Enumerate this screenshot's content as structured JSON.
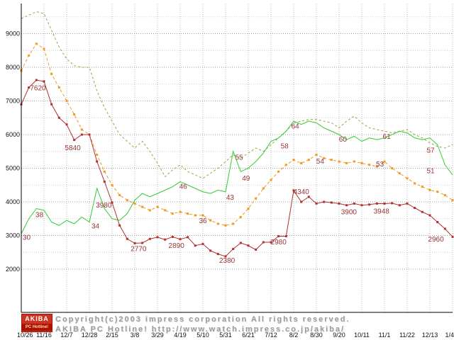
{
  "chart_data": {
    "type": "line",
    "title": "",
    "xlabel": "",
    "ylabel": "",
    "ylim": [
      700,
      9900
    ],
    "grid": {
      "major_color": "#9f9f9f",
      "minor_color": "#d0d0d0",
      "vert_color": "#b5b5b5"
    },
    "label_color": "#993333",
    "y_tick_labels": [
      2000,
      3000,
      4000,
      5000,
      6000,
      7000,
      8000,
      9000
    ],
    "x_tick_labels": [
      "10/26",
      "11/16",
      "12/7",
      "12/28",
      "2/15",
      "3/8",
      "3/29",
      "4/19",
      "5/10",
      "5/31",
      "6/21",
      "7/12",
      "8/2",
      "8/30",
      "9/20",
      "10/11",
      "11/1",
      "11/22",
      "12/13",
      "1/4"
    ],
    "points_per_tick": 3,
    "weeks_span": 57,
    "series": [
      {
        "name": "olive-dashed",
        "color": "#a0a040",
        "dash": "3 3",
        "marker": "none",
        "values": [
          9450,
          9550,
          9650,
          9600,
          9100,
          8600,
          8250,
          8050,
          8000,
          8000,
          7300,
          6800,
          6400,
          6000,
          5800,
          5600,
          5800,
          5500,
          5150,
          4750,
          4950,
          5100,
          4900,
          4800,
          4700,
          4850,
          5000,
          5200,
          5400,
          5300,
          5450,
          5600,
          5500,
          5700,
          5900,
          6100,
          6350,
          6400,
          6450,
          6450,
          6400,
          6350,
          6200,
          6400,
          6550,
          6350,
          6200,
          6150,
          6100,
          6050,
          6100,
          6150,
          6000,
          5900,
          5750,
          5650,
          5600,
          5700
        ]
      },
      {
        "name": "green-solid",
        "color": "#33cc33",
        "dash": "",
        "marker": "none",
        "values": [
          3050,
          3500,
          3800,
          3750,
          3400,
          3300,
          3450,
          3350,
          3550,
          3400,
          4400,
          3800,
          3500,
          3450,
          3650,
          4050,
          4250,
          4150,
          4250,
          4350,
          4450,
          4600,
          4500,
          4400,
          4300,
          4250,
          4350,
          4300,
          5500,
          4900,
          5000,
          5200,
          5450,
          5800,
          5900,
          6100,
          6400,
          6300,
          6400,
          6350,
          6200,
          6100,
          6000,
          5850,
          5950,
          5800,
          5900,
          5850,
          5900,
          6000,
          6100,
          6050,
          5900,
          5850,
          5900,
          5700,
          5100,
          4800
        ]
      },
      {
        "name": "orange-dashed-marker",
        "color": "#ee9922",
        "dash": "4 3",
        "marker": "square",
        "values": [
          7900,
          8350,
          8700,
          8550,
          7800,
          7400,
          7000,
          6600,
          6150,
          6000,
          5400,
          4900,
          4500,
          4200,
          4050,
          3950,
          3850,
          3750,
          3850,
          3750,
          3650,
          3700,
          3650,
          3600,
          3600,
          3450,
          3350,
          3300,
          3350,
          3550,
          3800,
          4100,
          4400,
          4650,
          4900,
          5100,
          5250,
          5150,
          5250,
          5400,
          5300,
          5250,
          5200,
          5150,
          5200,
          5150,
          5100,
          5050,
          5200,
          5000,
          4850,
          4700,
          4550,
          4450,
          4350,
          4300,
          4200,
          4050
        ]
      },
      {
        "name": "red-solid-marker",
        "color": "#b03030",
        "dash": "",
        "marker": "square",
        "values": [
          6900,
          7400,
          7620,
          7580,
          6900,
          6500,
          6300,
          5840,
          6000,
          6000,
          5200,
          4600,
          3980,
          3300,
          2900,
          2770,
          2780,
          2900,
          2950,
          2880,
          2960,
          2890,
          2950,
          2700,
          2750,
          2550,
          2450,
          2380,
          2600,
          2780,
          2700,
          2580,
          2800,
          2800,
          2980,
          2980,
          4340,
          4000,
          4150,
          3950,
          4000,
          3980,
          3950,
          3900,
          3950,
          3900,
          3920,
          3950,
          3948,
          3960,
          3900,
          3950,
          3820,
          3700,
          3600,
          3400,
          3200,
          2960
        ]
      }
    ],
    "annotations": [
      {
        "text": "7620",
        "x": 2.2,
        "v": 7380
      },
      {
        "text": "5840",
        "x": 6.8,
        "v": 5600
      },
      {
        "text": "3980",
        "x": 10.9,
        "v": 3900
      },
      {
        "text": "2770",
        "x": 15.5,
        "v": 2600
      },
      {
        "text": "2890",
        "x": 20.5,
        "v": 2700
      },
      {
        "text": "2380",
        "x": 27.2,
        "v": 2250
      },
      {
        "text": "2980",
        "x": 34.0,
        "v": 2800
      },
      {
        "text": "4340",
        "x": 37.0,
        "v": 4300
      },
      {
        "text": "3900",
        "x": 43.3,
        "v": 3700
      },
      {
        "text": "3948",
        "x": 47.6,
        "v": 3720
      },
      {
        "text": "2960",
        "x": 54.8,
        "v": 2880
      },
      {
        "text": "30",
        "x": 0.7,
        "v": 2940
      },
      {
        "text": "38",
        "x": 2.4,
        "v": 3610
      },
      {
        "text": "34",
        "x": 9.8,
        "v": 3270
      },
      {
        "text": "46",
        "x": 21.4,
        "v": 4450
      },
      {
        "text": "36",
        "x": 24.0,
        "v": 3430
      },
      {
        "text": "43",
        "x": 27.6,
        "v": 4130
      },
      {
        "text": "55",
        "x": 28.8,
        "v": 5320
      },
      {
        "text": "49",
        "x": 29.7,
        "v": 4700
      },
      {
        "text": "58",
        "x": 34.8,
        "v": 5650
      },
      {
        "text": "64",
        "x": 36.2,
        "v": 6240
      },
      {
        "text": "54",
        "x": 39.5,
        "v": 5200
      },
      {
        "text": "60",
        "x": 42.5,
        "v": 5850
      },
      {
        "text": "53",
        "x": 47.4,
        "v": 5120
      },
      {
        "text": "61",
        "x": 48.3,
        "v": 5940
      },
      {
        "text": "57",
        "x": 54.1,
        "v": 5530
      },
      {
        "text": "51",
        "x": 54.1,
        "v": 4920
      }
    ]
  },
  "footer": {
    "logo_top": "AKIBA",
    "logo_bottom": "PC Hotline!",
    "line1": "Copyright(c)2003 impress corporation All rights reserved.",
    "line2": "AKIBA PC Hotline! http://www.watch.impress.co.jp/akiba/"
  }
}
